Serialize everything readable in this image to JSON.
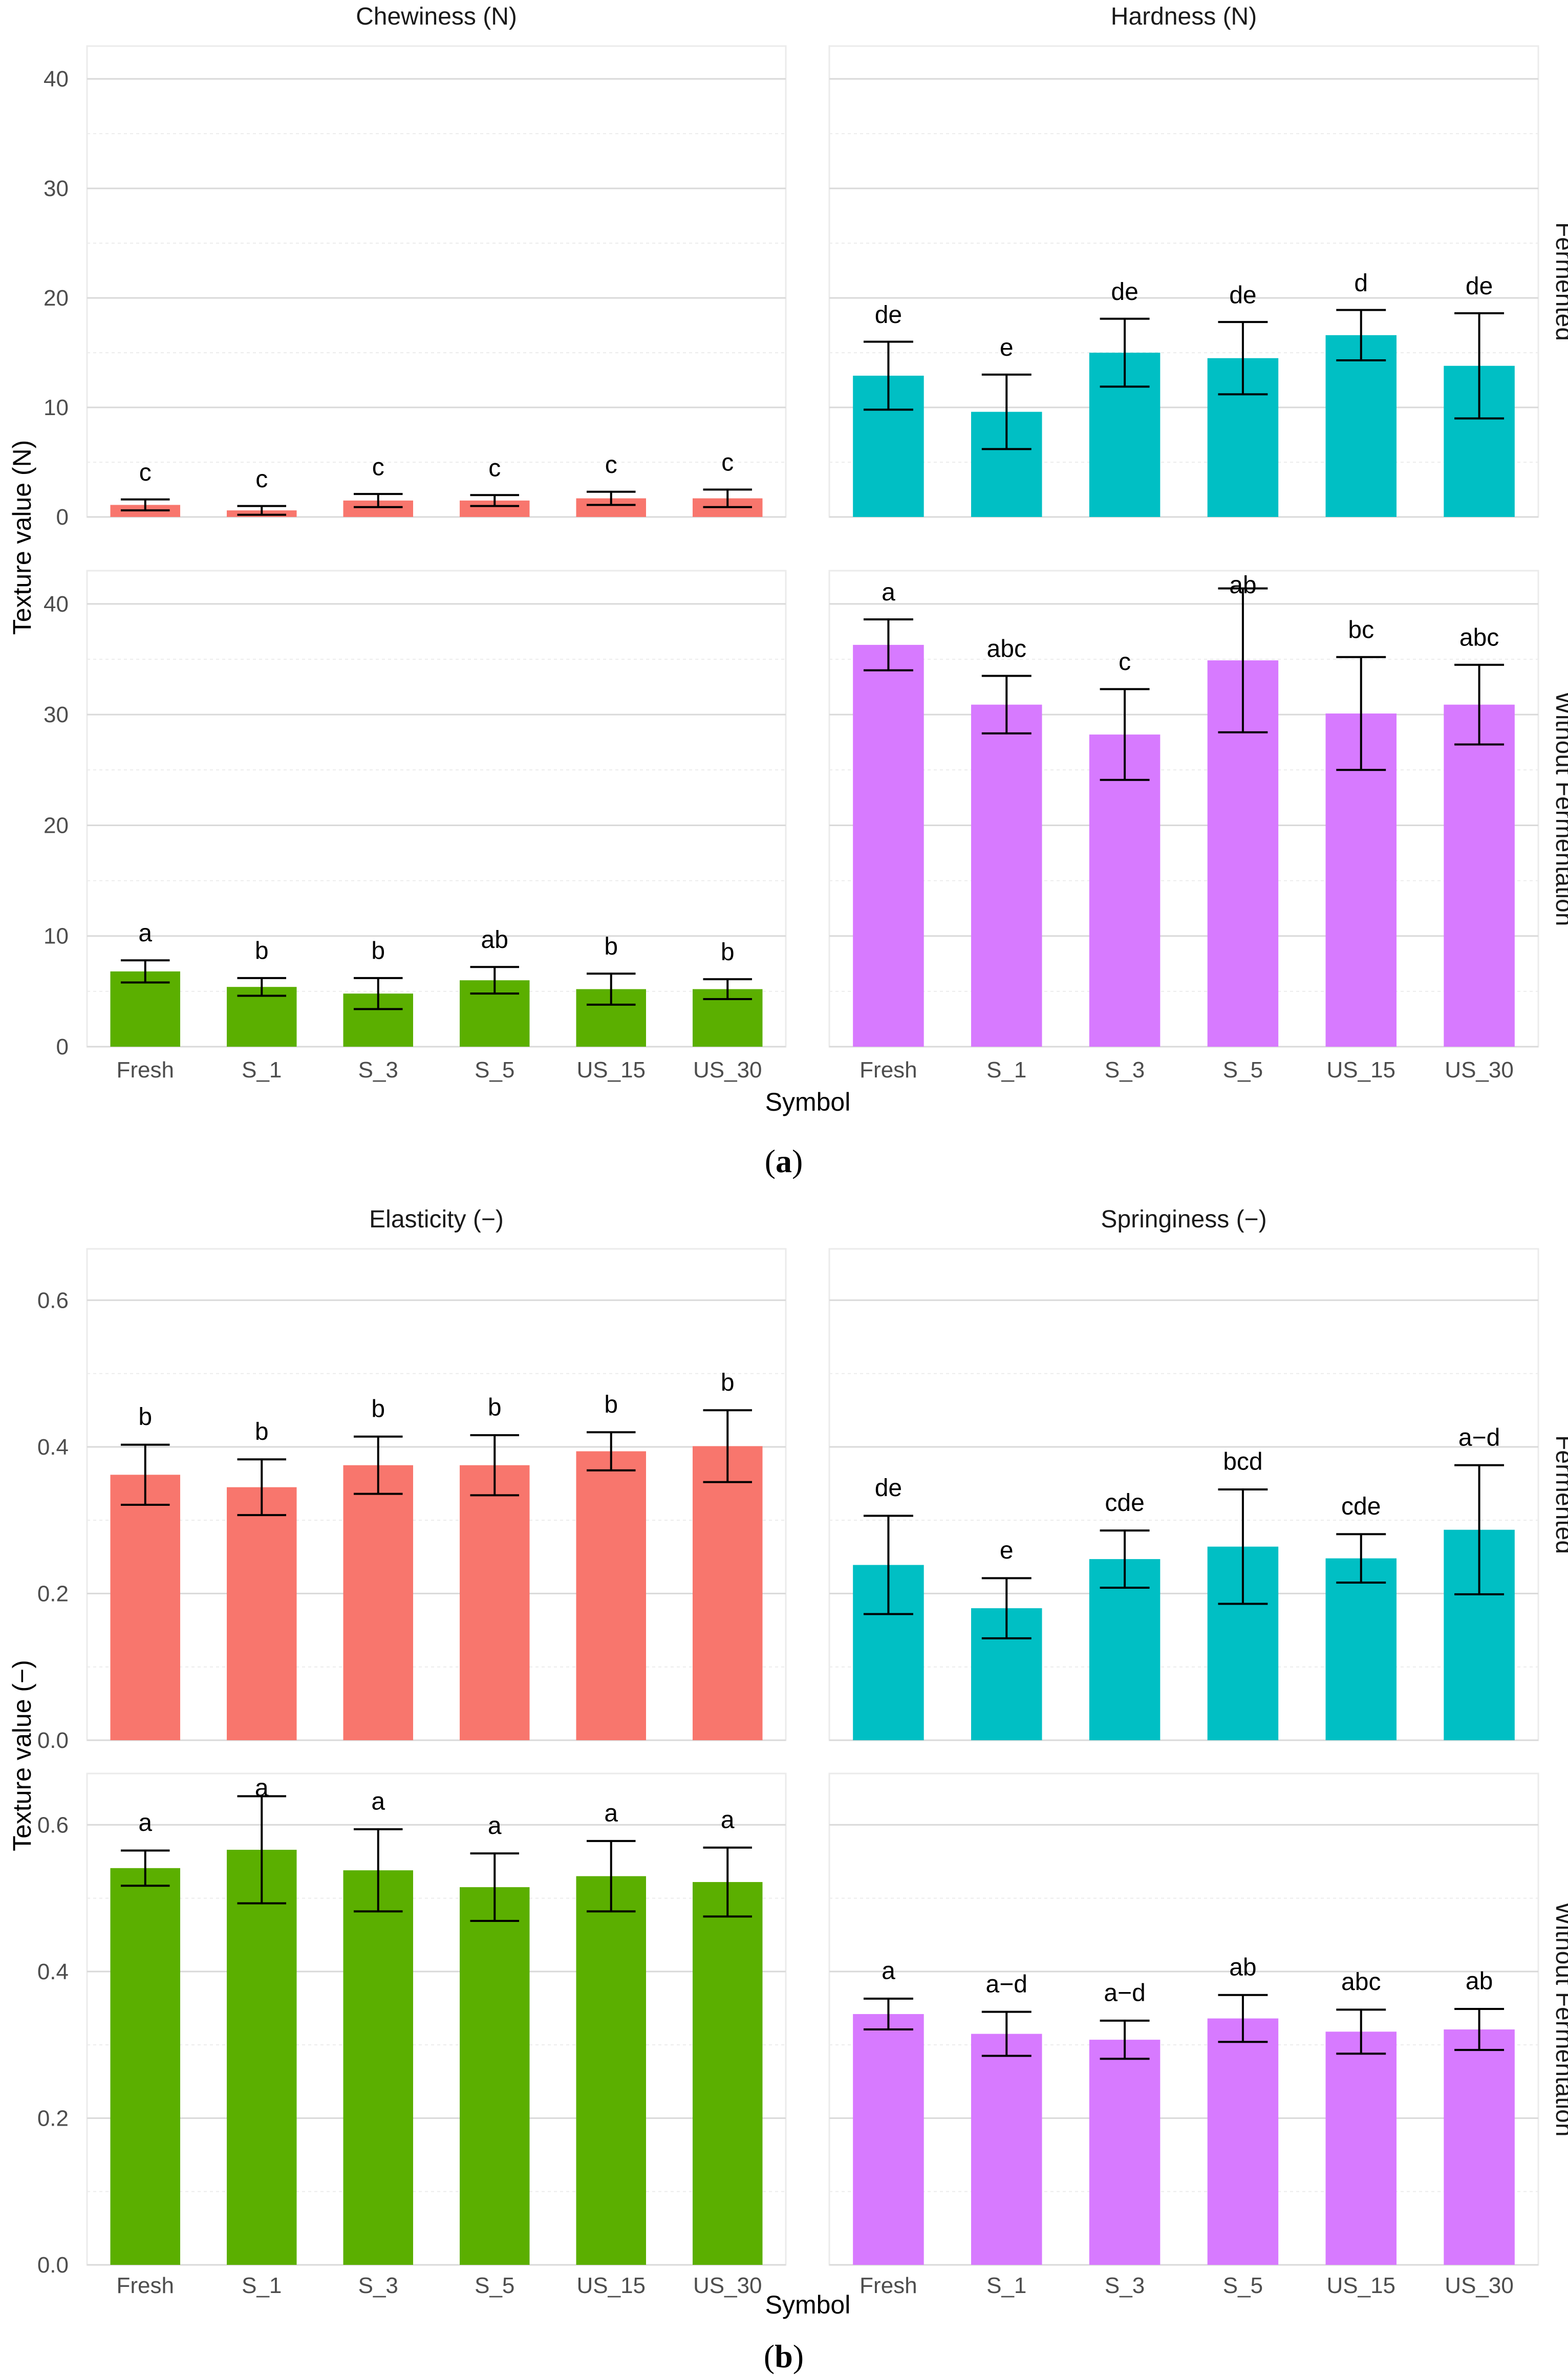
{
  "chart_data": [
    {
      "type": "bar",
      "part_label": "a",
      "ylabel": "Texture value (N)",
      "xlabel": "Symbol",
      "ylim": [
        0,
        43
      ],
      "yticks": [
        0,
        10,
        20,
        30,
        40
      ],
      "categories": [
        "Fresh",
        "S_1",
        "S_3",
        "S_5",
        "US_15",
        "US_30"
      ],
      "columns": [
        "Chewiness (N)",
        "Hardness (N)"
      ],
      "rows": [
        "Fermented",
        "Without Fermentation"
      ],
      "panels": [
        {
          "column": "Chewiness (N)",
          "row": "Fermented",
          "color": "#F8766D",
          "values": [
            1.1,
            0.6,
            1.5,
            1.5,
            1.7,
            1.7
          ],
          "errors": [
            0.5,
            0.4,
            0.6,
            0.5,
            0.6,
            0.8
          ],
          "letters": [
            "c",
            "c",
            "c",
            "c",
            "c",
            "c"
          ]
        },
        {
          "column": "Hardness (N)",
          "row": "Fermented",
          "color": "#00BFC4",
          "values": [
            12.9,
            9.6,
            15.0,
            14.5,
            16.6,
            13.8
          ],
          "errors": [
            3.1,
            3.4,
            3.1,
            3.3,
            2.3,
            4.8
          ],
          "letters": [
            "de",
            "e",
            "de",
            "de",
            "d",
            "de"
          ]
        },
        {
          "column": "Chewiness (N)",
          "row": "Without Fermentation",
          "color": "#5BAF00",
          "values": [
            6.8,
            5.4,
            4.8,
            6.0,
            5.2,
            5.2
          ],
          "errors": [
            1.0,
            0.8,
            1.4,
            1.2,
            1.4,
            0.9
          ],
          "letters": [
            "a",
            "b",
            "b",
            "ab",
            "b",
            "b"
          ]
        },
        {
          "column": "Hardness (N)",
          "row": "Without Fermentation",
          "color": "#D77AFF",
          "values": [
            36.3,
            30.9,
            28.2,
            34.9,
            30.1,
            30.9
          ],
          "errors": [
            2.3,
            2.6,
            4.1,
            6.5,
            5.1,
            3.6
          ],
          "letters": [
            "a",
            "abc",
            "c",
            "ab",
            "bc",
            "abc"
          ]
        }
      ]
    },
    {
      "type": "bar",
      "part_label": "b",
      "ylabel": "Texture value (−)",
      "xlabel": "Symbol",
      "ylim": [
        0,
        0.67
      ],
      "yticks": [
        0.0,
        0.2,
        0.4,
        0.6
      ],
      "tick_labels": [
        "0.0",
        "0.2",
        "0.4",
        "0.6"
      ],
      "categories": [
        "Fresh",
        "S_1",
        "S_3",
        "S_5",
        "US_15",
        "US_30"
      ],
      "columns": [
        "Elasticity (−)",
        "Springiness (−)"
      ],
      "rows": [
        "Fermented",
        "Without Fermentation"
      ],
      "panels": [
        {
          "column": "Elasticity (−)",
          "row": "Fermented",
          "color": "#F8766D",
          "values": [
            0.362,
            0.345,
            0.375,
            0.375,
            0.394,
            0.401
          ],
          "errors": [
            0.041,
            0.038,
            0.039,
            0.041,
            0.026,
            0.049
          ],
          "letters": [
            "b",
            "b",
            "b",
            "b",
            "b",
            "b"
          ]
        },
        {
          "column": "Springiness (−)",
          "row": "Fermented",
          "color": "#00BFC4",
          "values": [
            0.239,
            0.18,
            0.247,
            0.264,
            0.248,
            0.287
          ],
          "errors": [
            0.067,
            0.041,
            0.039,
            0.078,
            0.033,
            0.088
          ],
          "letters": [
            "de",
            "e",
            "cde",
            "bcd",
            "cde",
            "a−d"
          ]
        },
        {
          "column": "Elasticity (−)",
          "row": "Without Fermentation",
          "color": "#5BAF00",
          "values": [
            0.541,
            0.566,
            0.538,
            0.515,
            0.53,
            0.522
          ],
          "errors": [
            0.024,
            0.073,
            0.056,
            0.046,
            0.048,
            0.047
          ],
          "letters": [
            "a",
            "a",
            "a",
            "a",
            "a",
            "a"
          ]
        },
        {
          "column": "Springiness (−)",
          "row": "Without Fermentation",
          "color": "#D77AFF",
          "values": [
            0.342,
            0.315,
            0.307,
            0.336,
            0.318,
            0.321
          ],
          "errors": [
            0.021,
            0.03,
            0.026,
            0.032,
            0.03,
            0.028
          ],
          "letters": [
            "a",
            "a−d",
            "a−d",
            "ab",
            "abc",
            "ab"
          ]
        }
      ]
    }
  ]
}
